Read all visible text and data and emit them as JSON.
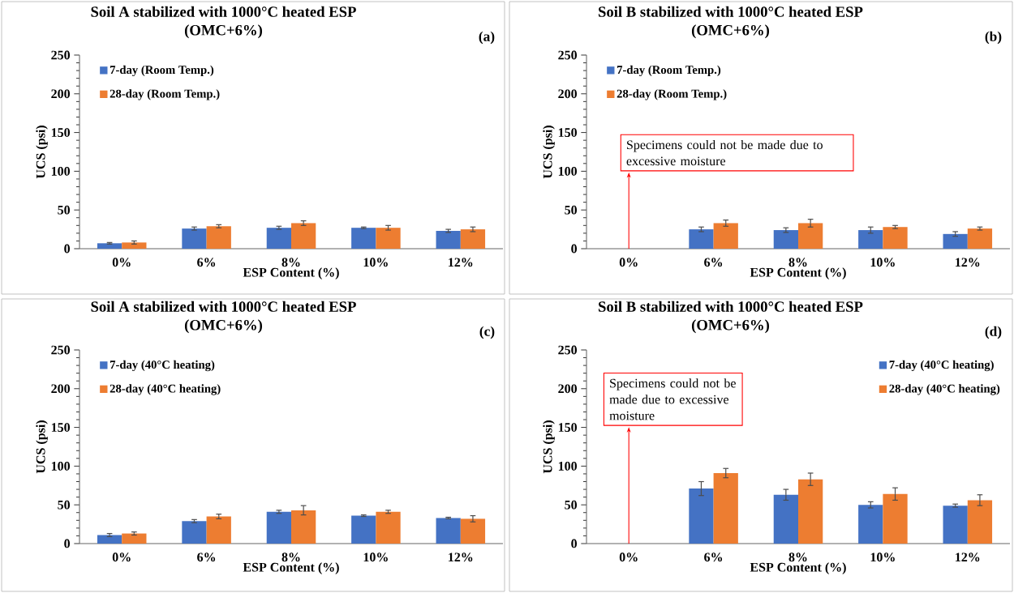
{
  "chart_data": [
    {
      "type": "bar",
      "title": "Soil A stabilized with 1000°C heated ESP",
      "subtitle": "(OMC+6%)",
      "xlabel": "ESP Content (%)",
      "ylabel": "UCS (psi)",
      "categories": [
        "0%",
        "6%",
        "8%",
        "10%",
        "12%"
      ],
      "series": [
        {
          "name": "7-day (Room Temp.)",
          "color": "#4472c4",
          "values": [
            7,
            26,
            27,
            27,
            23
          ],
          "errors": [
            1,
            2,
            2,
            1,
            2
          ]
        },
        {
          "name": "28-day (Room Temp.)",
          "color": "#ed7d31",
          "values": [
            8,
            29,
            33,
            27,
            25
          ],
          "errors": [
            2,
            2,
            3,
            3,
            3
          ]
        }
      ],
      "ylim": [
        0,
        250
      ],
      "yticks": [
        0,
        50,
        100,
        150,
        200,
        250
      ],
      "legend": "top left",
      "annotations": [
        "(a)"
      ]
    },
    {
      "type": "bar",
      "title": "Soil B stabilized with 1000°C heated ESP",
      "subtitle": "(OMC+6%)",
      "xlabel": "ESP Content (%)",
      "ylabel": "UCS (psi)",
      "categories": [
        "0%",
        "6%",
        "8%",
        "10%",
        "12%"
      ],
      "series": [
        {
          "name": "7-day (Room Temp.)",
          "color": "#4472c4",
          "values": [
            0,
            25,
            24,
            24,
            19
          ],
          "errors": [
            null,
            3,
            3,
            4,
            3
          ]
        },
        {
          "name": "28-day (Room Temp.)",
          "color": "#ed7d31",
          "values": [
            0,
            33,
            33,
            28,
            26
          ],
          "errors": [
            null,
            4,
            5,
            2,
            2
          ]
        }
      ],
      "ylim": [
        0,
        250
      ],
      "yticks": [
        0,
        50,
        100,
        150,
        200,
        250
      ],
      "legend": "top left",
      "annotations": [
        "(b)",
        {
          "text": "Specimens could not be made due to excessive moisture",
          "x": "0%",
          "y": 0
        }
      ]
    },
    {
      "type": "bar",
      "title": "Soil A stabilized with 1000°C heated ESP",
      "subtitle": "(OMC+6%)",
      "xlabel": "ESP Content (%)",
      "ylabel": "UCS (psi)",
      "categories": [
        "0%",
        "6%",
        "8%",
        "10%",
        "12%"
      ],
      "series": [
        {
          "name": "7-day (40°C heating)",
          "color": "#4472c4",
          "values": [
            11,
            29,
            41,
            36,
            33
          ],
          "errors": [
            2,
            2,
            2,
            1,
            1
          ]
        },
        {
          "name": "28-day (40°C heating)",
          "color": "#ed7d31",
          "values": [
            13,
            35,
            43,
            41,
            32
          ],
          "errors": [
            2,
            3,
            6,
            2,
            4
          ]
        }
      ],
      "ylim": [
        0,
        250
      ],
      "yticks": [
        0,
        50,
        100,
        150,
        200,
        250
      ],
      "legend": "top left",
      "annotations": [
        "(c)"
      ]
    },
    {
      "type": "bar",
      "title": "Soil B stabilized with 1000°C heated ESP",
      "subtitle": "(OMC+6%)",
      "xlabel": "ESP Content (%)",
      "ylabel": "UCS (psi)",
      "categories": [
        "0%",
        "6%",
        "8%",
        "10%",
        "12%"
      ],
      "series": [
        {
          "name": "7-day (40°C heating)",
          "color": "#4472c4",
          "values": [
            0,
            71,
            63,
            50,
            49
          ],
          "errors": [
            null,
            9,
            7,
            4,
            2
          ]
        },
        {
          "name": "28-day (40°C heating)",
          "color": "#ed7d31",
          "values": [
            0,
            91,
            83,
            64,
            56
          ],
          "errors": [
            null,
            6,
            8,
            8,
            7
          ]
        }
      ],
      "ylim": [
        0,
        250
      ],
      "yticks": [
        0,
        50,
        100,
        150,
        200,
        250
      ],
      "legend": "top right",
      "annotations": [
        "(d)",
        {
          "text": "Specimens could not be made due to excessive moisture",
          "x": "0%",
          "y": 0
        }
      ]
    }
  ]
}
